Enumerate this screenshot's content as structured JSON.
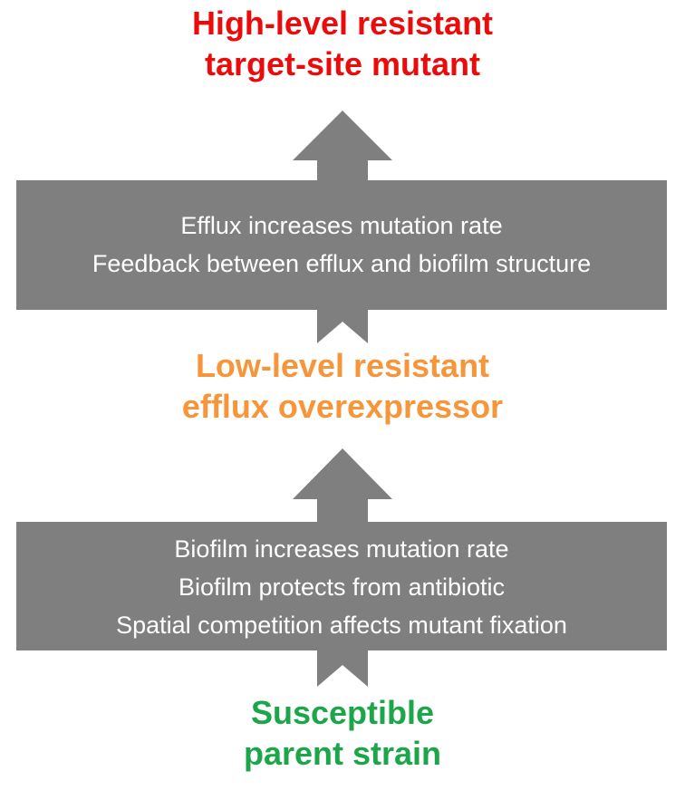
{
  "colors": {
    "arrow_fill": "#7f7f7f",
    "top_label": "#ec0b0b",
    "middle_label": "#f7953b",
    "bottom_label": "#1ca64a",
    "box_text": "#ffffff"
  },
  "stages": {
    "top": {
      "line1": "High-level resistant",
      "line2": "target-site mutant"
    },
    "middle": {
      "line1": "Low-level resistant",
      "line2": "efflux overexpressor"
    },
    "bottom": {
      "line1": "Susceptible",
      "line2": "parent strain"
    }
  },
  "transitions": {
    "upper": {
      "lines": [
        "Efflux increases mutation rate",
        "Feedback between efflux and biofilm structure"
      ]
    },
    "lower": {
      "lines": [
        "Biofilm increases mutation rate",
        "Biofilm protects from antibiotic",
        "Spatial competition affects mutant fixation"
      ]
    }
  }
}
